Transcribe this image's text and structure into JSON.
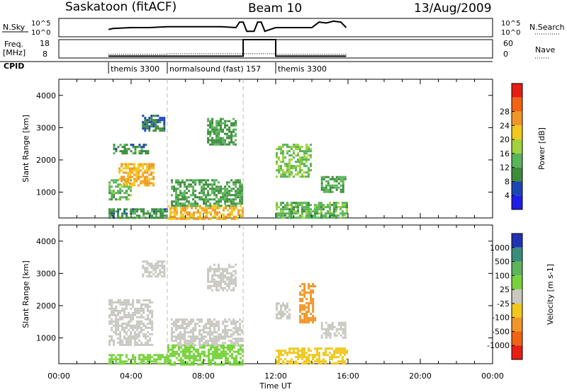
{
  "header": {
    "station": "Saskatoon (fitACF)",
    "beam": "Beam 10",
    "date": "13/Aug/2009"
  },
  "strip_labels": {
    "nsky": "N.Sky",
    "nsky_ticks": [
      "10^5",
      "10^0"
    ],
    "freq_line1": "Freq.",
    "freq_line2": "[MHz]",
    "freq_ticks": [
      "18",
      "8"
    ],
    "nsearch": "N.Search",
    "nsearch_ticks": [
      "10^5",
      "10^0"
    ],
    "nave": "Nave",
    "nave_ticks": [
      "60",
      "0"
    ],
    "cpid": "CPID"
  },
  "cpid_segments": [
    {
      "start": 2.75,
      "label": "themis 3300"
    },
    {
      "start": 6.0,
      "label": "normalsound (fast) 157"
    },
    {
      "start": 12.0,
      "label": "themis 3300"
    }
  ],
  "axes": {
    "xlabel": "Time UT",
    "xticks": [
      "00:00",
      "04:00",
      "08:00",
      "12:00",
      "16:00",
      "20:00",
      "00:00"
    ],
    "ylabel": "Slant Range [km]",
    "yticks": [
      "1000",
      "2000",
      "3000",
      "4000"
    ]
  },
  "colorbars": {
    "power": {
      "label": "Power [dB]",
      "ticks": [
        "4",
        "8",
        "12",
        "16",
        "20",
        "24",
        "28"
      ],
      "colors": [
        "#1e1ee6",
        "#1c46b4",
        "#3c8c3c",
        "#5ab45a",
        "#a0d23c",
        "#f0c81e",
        "#f09628",
        "#f06414",
        "#e61e14"
      ]
    },
    "velocity": {
      "label": "Velocity [m s-1]",
      "ticks": [
        "1000",
        "500",
        "100",
        "25",
        "-25",
        "-100",
        "-500",
        "-1000"
      ],
      "colors": [
        "#2232b4",
        "#3c8c7c",
        "#5cb45c",
        "#78d23c",
        "#c8c8c0",
        "#f0c81e",
        "#f09628",
        "#f06414",
        "#e61e14"
      ]
    }
  },
  "chart_data": [
    {
      "type": "line",
      "title": "N.Sky",
      "x_range_hours": [
        0,
        24
      ],
      "series": [
        {
          "name": "N.Sky",
          "x": [
            2.75,
            3,
            4,
            5,
            6,
            7,
            8,
            9,
            9.8,
            10.0,
            10.2,
            10.4,
            10.8,
            11.0,
            11.2,
            11.4,
            12.0,
            13,
            14,
            14.4,
            14.8,
            15.2,
            15.6,
            15.9
          ],
          "y": [
            0.6,
            0.55,
            0.5,
            0.5,
            0.45,
            0.45,
            0.45,
            0.45,
            0.5,
            0.2,
            0.2,
            0.7,
            0.7,
            0.2,
            0.2,
            0.7,
            0.5,
            0.5,
            0.5,
            0.2,
            0.25,
            0.15,
            0.2,
            0.5
          ]
        }
      ]
    },
    {
      "type": "line",
      "title": "Freq.",
      "x_range_hours": [
        0,
        24
      ],
      "series": [
        {
          "name": "Freq.",
          "x": [
            2.75,
            6.0,
            6.0,
            10.2,
            10.2,
            12.0,
            12.0,
            15.9
          ],
          "y": [
            9,
            9,
            9,
            9,
            18,
            18,
            9,
            9
          ]
        },
        {
          "name": "Nave",
          "x": [
            2.75,
            6.0,
            6.0,
            12.0,
            12.0,
            15.9
          ],
          "y": [
            12,
            12,
            14,
            14,
            12,
            12
          ]
        }
      ]
    },
    {
      "type": "heatmap",
      "title": "Power [dB]",
      "x_range_hours": [
        0,
        24
      ],
      "ylim": [
        200,
        4500
      ],
      "colorbar_range": [
        0,
        30
      ],
      "regions": [
        {
          "t0": 2.75,
          "t1": 6.0,
          "r0": 200,
          "r1": 500,
          "value": 8
        },
        {
          "t0": 2.75,
          "t1": 4.0,
          "r0": 800,
          "r1": 1400,
          "value": 12
        },
        {
          "t0": 3.3,
          "t1": 5.2,
          "r0": 1200,
          "r1": 1900,
          "value": 22
        },
        {
          "t0": 3.0,
          "t1": 5.0,
          "r0": 2200,
          "r1": 2500,
          "value": 8
        },
        {
          "t0": 4.6,
          "t1": 5.8,
          "r0": 2900,
          "r1": 3400,
          "value": 6
        },
        {
          "t0": 6.0,
          "t1": 10.2,
          "r0": 200,
          "r1": 600,
          "value": 22
        },
        {
          "t0": 6.2,
          "t1": 10.2,
          "r0": 600,
          "r1": 1400,
          "value": 10
        },
        {
          "t0": 8.2,
          "t1": 9.8,
          "r0": 2500,
          "r1": 3300,
          "value": 9
        },
        {
          "t0": 12.0,
          "t1": 15.9,
          "r0": 200,
          "r1": 700,
          "value": 12
        },
        {
          "t0": 12.0,
          "t1": 14.0,
          "r0": 1500,
          "r1": 2500,
          "value": 14
        },
        {
          "t0": 14.5,
          "t1": 15.9,
          "r0": 1000,
          "r1": 1500,
          "value": 10
        }
      ]
    },
    {
      "type": "heatmap",
      "title": "Velocity [m s-1]",
      "x_range_hours": [
        0,
        24
      ],
      "ylim": [
        200,
        4500
      ],
      "regions": [
        {
          "t0": 2.75,
          "t1": 6.0,
          "r0": 200,
          "r1": 500,
          "value": 50
        },
        {
          "t0": 2.75,
          "t1": 5.2,
          "r0": 800,
          "r1": 2200,
          "value": 0
        },
        {
          "t0": 4.6,
          "t1": 5.8,
          "r0": 2900,
          "r1": 3400,
          "value": 0
        },
        {
          "t0": 6.0,
          "t1": 10.2,
          "r0": 200,
          "r1": 800,
          "value": 60
        },
        {
          "t0": 6.2,
          "t1": 10.2,
          "r0": 800,
          "r1": 1600,
          "value": 0
        },
        {
          "t0": 8.2,
          "t1": 9.8,
          "r0": 2500,
          "r1": 3300,
          "value": 0
        },
        {
          "t0": 12.0,
          "t1": 15.9,
          "r0": 200,
          "r1": 700,
          "value": -60
        },
        {
          "t0": 13.3,
          "t1": 14.2,
          "r0": 1500,
          "r1": 2700,
          "value": -400
        },
        {
          "t0": 12.0,
          "t1": 12.8,
          "r0": 1600,
          "r1": 2100,
          "value": 0
        },
        {
          "t0": 14.5,
          "t1": 15.9,
          "r0": 1000,
          "r1": 1500,
          "value": 0
        }
      ]
    }
  ]
}
